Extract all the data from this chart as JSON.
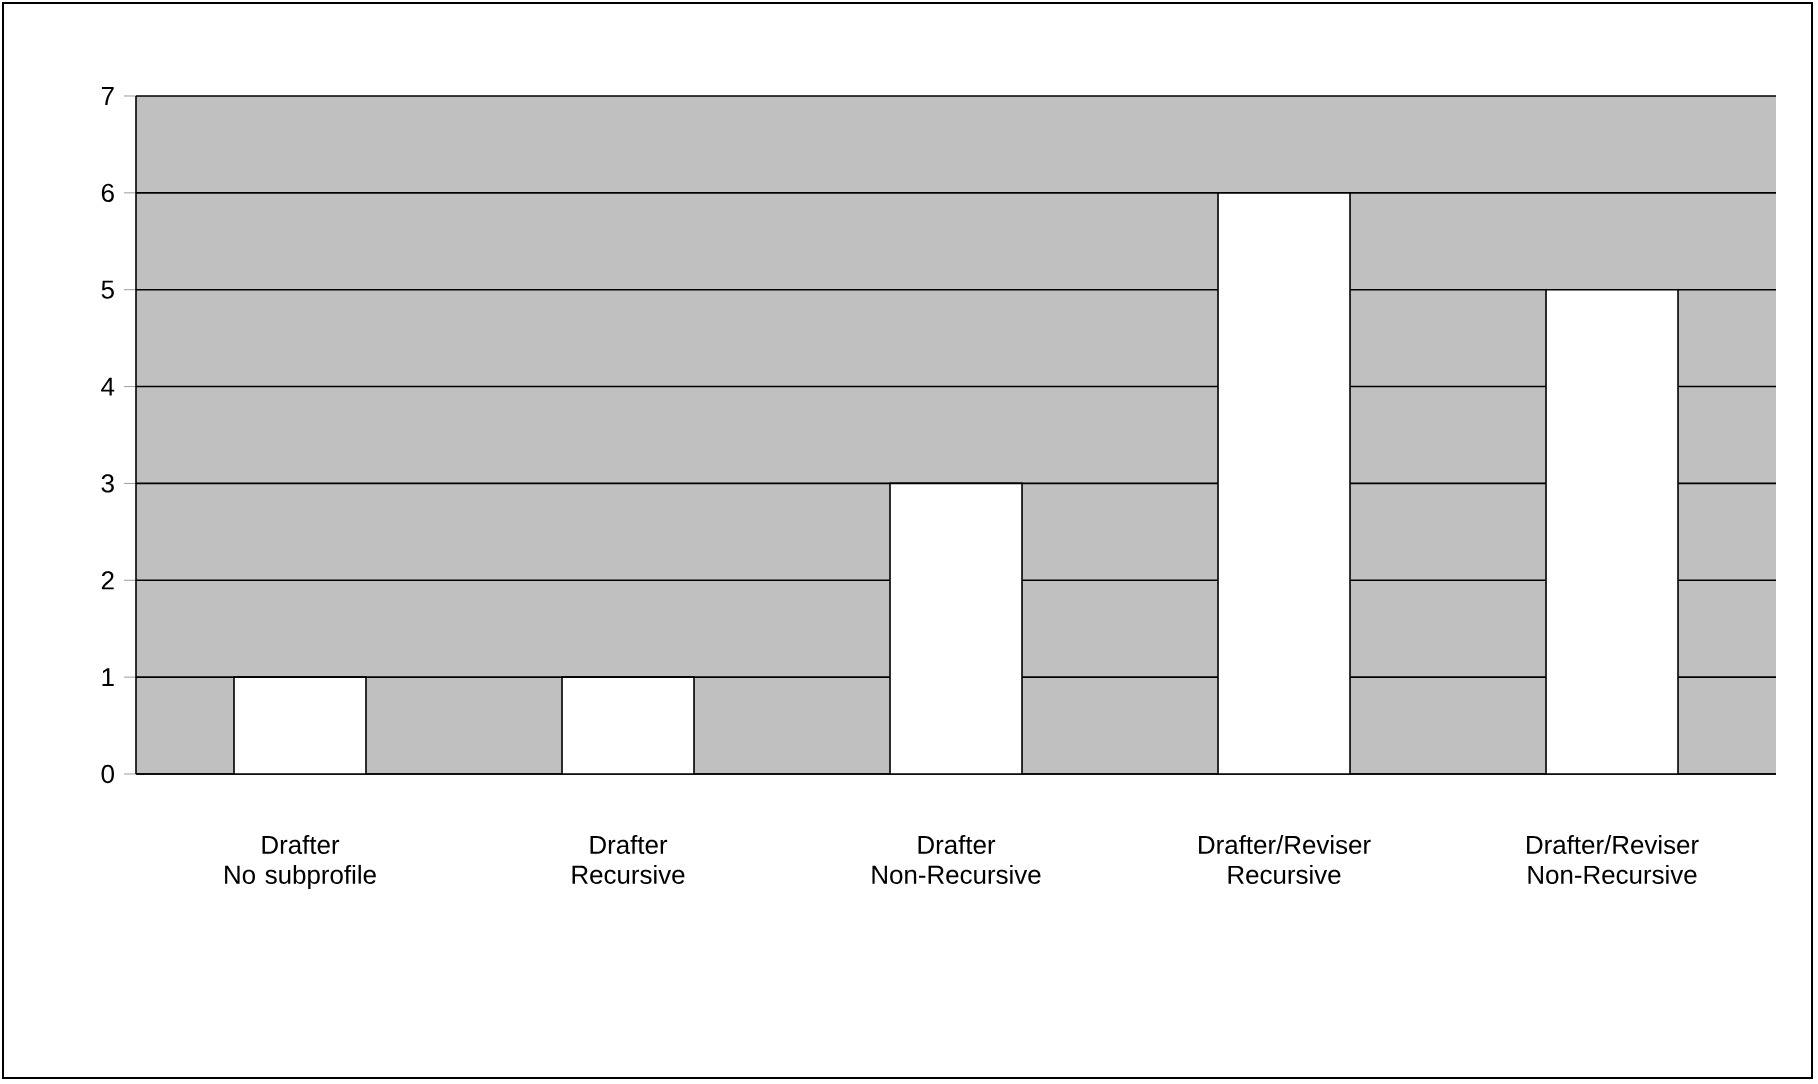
{
  "chart_data": {
    "type": "bar",
    "categories": [
      "Drafter\nNo subprofile",
      "Drafter\nRecursive",
      "Drafter\nNon-Recursive",
      "Drafter/Reviser\nRecursive",
      "Drafter/Reviser\nNon-Recursive"
    ],
    "values": [
      1,
      1,
      3,
      6,
      5
    ],
    "color": "#ffffff",
    "ylim": [
      0,
      7
    ],
    "yticks": [
      0,
      1,
      2,
      3,
      4,
      5,
      6,
      7
    ],
    "grid": "y"
  }
}
